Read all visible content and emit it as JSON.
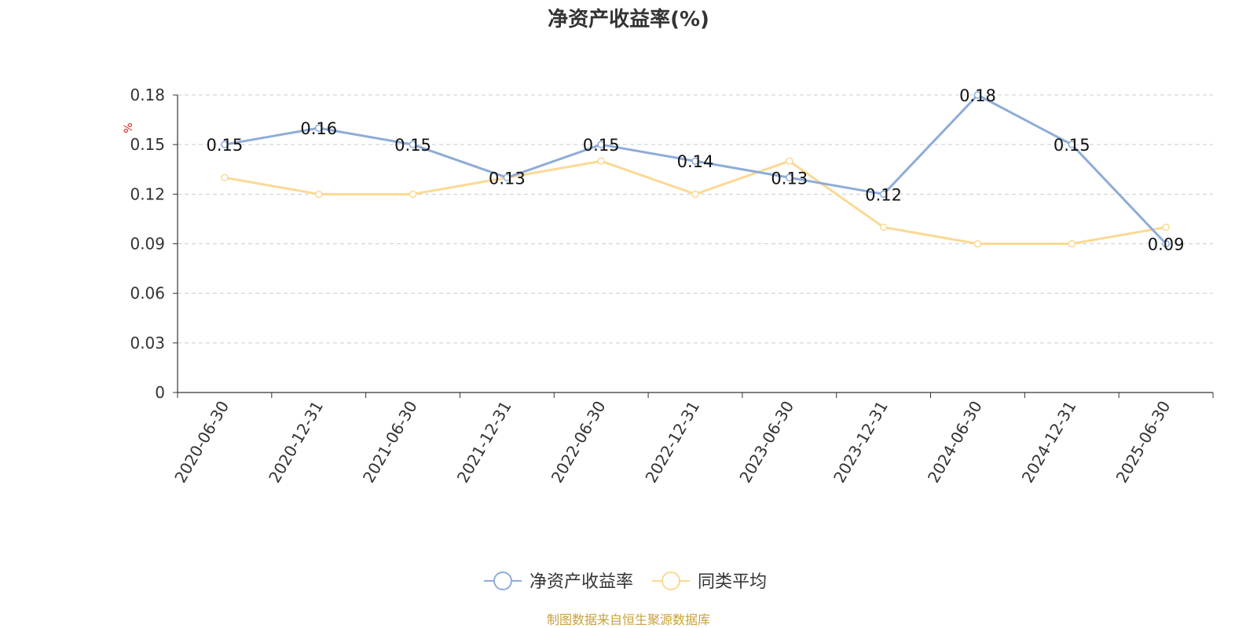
{
  "chart_data": {
    "type": "line",
    "title": "净资产收益率(%)",
    "ylabel": "%",
    "categories": [
      "2020-06-30",
      "2020-12-31",
      "2021-06-30",
      "2021-12-31",
      "2022-06-30",
      "2022-12-31",
      "2023-06-30",
      "2023-12-31",
      "2024-06-30",
      "2024-12-31",
      "2025-06-30"
    ],
    "ylim": [
      0,
      0.18
    ],
    "yticks": [
      0,
      0.03,
      0.06,
      0.09,
      0.12,
      0.15,
      0.18
    ],
    "ytick_labels": [
      "0",
      "0.03",
      "0.06",
      "0.09",
      "0.12",
      "0.15",
      "0.18"
    ],
    "grid": true,
    "legend_position": "bottom-center",
    "series": [
      {
        "name": "净资产收益率",
        "color": "#8eacd8",
        "values": [
          0.15,
          0.16,
          0.15,
          0.13,
          0.15,
          0.14,
          0.13,
          0.12,
          0.18,
          0.15,
          0.09
        ],
        "labels": [
          "0.15",
          "0.16",
          "0.15",
          "0.13",
          "0.15",
          "0.14",
          "0.13",
          "0.12",
          "0.18",
          "0.15",
          "0.09"
        ],
        "show_labels": true
      },
      {
        "name": "同类平均",
        "color": "#fbd994",
        "values": [
          0.13,
          0.12,
          0.12,
          0.13,
          0.14,
          0.12,
          0.14,
          0.1,
          0.09,
          0.09,
          0.1
        ],
        "show_labels": false
      }
    ]
  },
  "footer": {
    "source": "制图数据来自恒生聚源数据库"
  },
  "colors": {
    "axis": "#333333",
    "grid": "#cccccc",
    "text": "#333333",
    "source": "#c8a23c",
    "unit": "#e02020"
  }
}
